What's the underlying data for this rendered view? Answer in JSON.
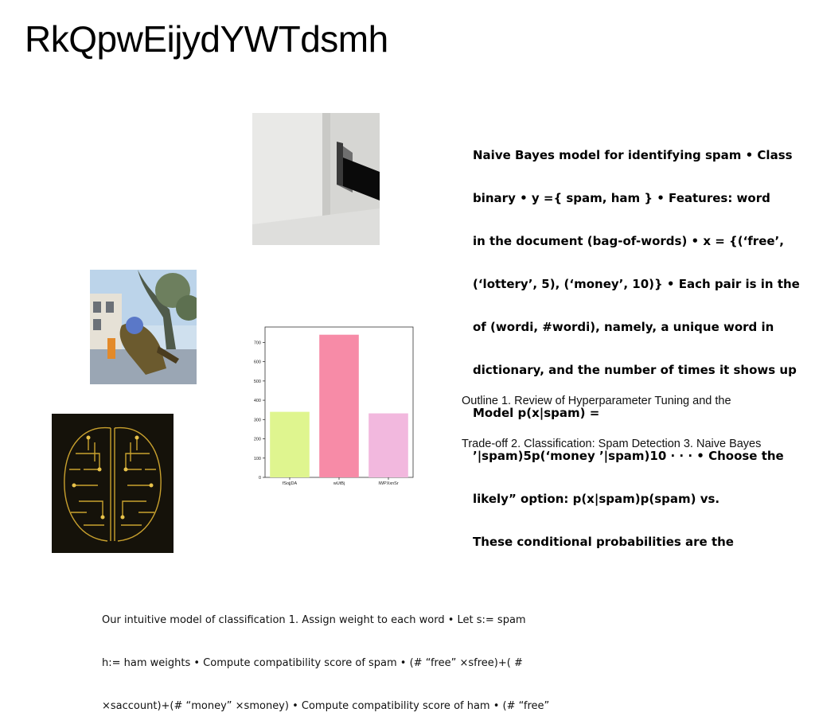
{
  "slide": {
    "title": "RkQpwEijydYWTdsmh",
    "bold_text_lines": [
      "Naive Bayes model for identifying spam • Class",
      "binary • y ={ spam, ham } • Features: word",
      "in the document (bag-of-words) • x = {(‘free’,",
      "(‘lottery’, 5), (‘money’, 10)} • Each pair is in the",
      "of (wordi, #wordi), namely, a unique word in",
      "dictionary, and the number of times it shows up",
      "Model p(x|spam) =",
      "’|spam)5p(‘money ’|spam)10 · · · • Choose the",
      "likely” option: p(x|spam)p(spam) vs.",
      "These conditional probabilities are the"
    ],
    "outline_lines": [
      "Outline 1. Review of Hyperparameter Tuning and the",
      "Trade-off 2. Classification: Spam Detection 3. Naive Bayes"
    ],
    "bottom_lines": [
      "Our intuitive model of classification 1. Assign weight to each word • Let s:= spam",
      "h:= ham weights • Compute compatibility score of spam • (# “free” ×sfree)+( #",
      "×saccount)+(# “money” ×smoney) • Compute compatibility score of ham • (# “free”"
    ]
  },
  "chart_data": {
    "type": "bar",
    "categories": [
      "fSojjDA",
      "wUtBj",
      "IWPXxnSr"
    ],
    "values": [
      340,
      740,
      332
    ],
    "colors": [
      "#dff58f",
      "#f78ba7",
      "#f2b8de"
    ],
    "yticks": [
      0,
      100,
      200,
      300,
      400,
      500,
      600,
      700
    ],
    "ylim": [
      0,
      780
    ],
    "title": "",
    "xlabel": "",
    "ylabel": ""
  }
}
